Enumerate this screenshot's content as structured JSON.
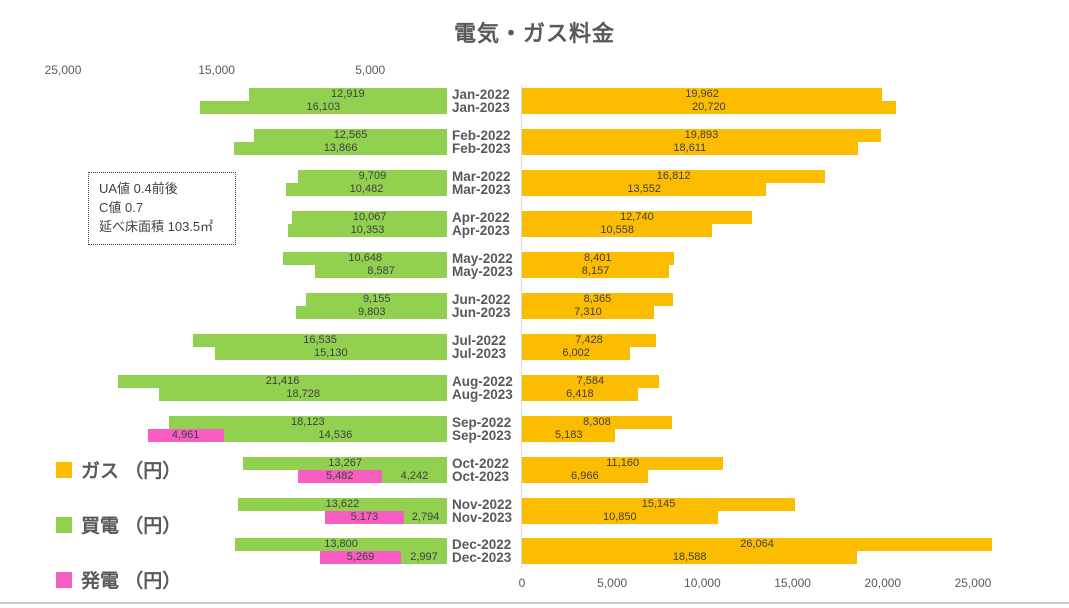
{
  "title": "電気・ガス料金",
  "annotation": {
    "lines": [
      "UA値 0.4前後",
      "C値 0.7",
      "延べ床面積 103.5㎡"
    ]
  },
  "legend": [
    {
      "id": "gas",
      "label": "ガス （円）",
      "color": "#FCBD00"
    },
    {
      "id": "buy",
      "label": "買電 （円）",
      "color": "#92D050"
    },
    {
      "id": "gen",
      "label": "発電 （円）",
      "color": "#F85EC2"
    }
  ],
  "colors": {
    "gas": "#FCBD00",
    "buy": "#92D050",
    "gen": "#F85EC2",
    "category_text": "#595959",
    "value_text": "#3f3f3f",
    "axis_line": "#d9d9d9"
  },
  "chart_data": {
    "type": "bar",
    "layout": "butterfly (left axis reversed: 買電/発電, right axis: ガス)",
    "title": "電気・ガス料金",
    "axis_max": 26500,
    "grid": false,
    "left_axis": {
      "direction": "values increase to the left",
      "ticks": [
        {
          "label": "25,000",
          "value": 25000
        },
        {
          "label": "15,000",
          "value": 15000
        },
        {
          "label": "5,000",
          "value": 5000
        }
      ]
    },
    "right_axis": {
      "ticks": [
        {
          "label": "0",
          "value": 0
        },
        {
          "label": "5,000",
          "value": 5000
        },
        {
          "label": "10,000",
          "value": 10000
        },
        {
          "label": "15,000",
          "value": 15000
        },
        {
          "label": "20,000",
          "value": 20000
        },
        {
          "label": "25,000",
          "value": 25000
        }
      ]
    },
    "series_names": {
      "gas": "ガス（円）",
      "buy": "買電（円）",
      "gen": "発電（円）"
    },
    "months": [
      {
        "rows": [
          {
            "label": "Jan-2022",
            "buy": 12919,
            "gen": null,
            "gas": 19962
          },
          {
            "label": "Jan-2023",
            "buy": 16103,
            "gen": null,
            "gas": 20720
          }
        ]
      },
      {
        "rows": [
          {
            "label": "Feb-2022",
            "buy": 12565,
            "gen": null,
            "gas": 19893
          },
          {
            "label": "Feb-2023",
            "buy": 13866,
            "gen": null,
            "gas": 18611
          }
        ]
      },
      {
        "rows": [
          {
            "label": "Mar-2022",
            "buy": 9709,
            "gen": null,
            "gas": 16812
          },
          {
            "label": "Mar-2023",
            "buy": 10482,
            "gen": null,
            "gas": 13552
          }
        ]
      },
      {
        "rows": [
          {
            "label": "Apr-2022",
            "buy": 10067,
            "gen": null,
            "gas": 12740
          },
          {
            "label": "Apr-2023",
            "buy": 10353,
            "gen": null,
            "gas": 10558
          }
        ]
      },
      {
        "rows": [
          {
            "label": "May-2022",
            "buy": 10648,
            "gen": null,
            "gas": 8401
          },
          {
            "label": "May-2023",
            "buy": 8587,
            "gen": null,
            "gas": 8157
          }
        ]
      },
      {
        "rows": [
          {
            "label": "Jun-2022",
            "buy": 9155,
            "gen": null,
            "gas": 8365
          },
          {
            "label": "Jun-2023",
            "buy": 9803,
            "gen": null,
            "gas": 7310
          }
        ]
      },
      {
        "rows": [
          {
            "label": "Jul-2022",
            "buy": 16535,
            "gen": null,
            "gas": 7428
          },
          {
            "label": "Jul-2023",
            "buy": 15130,
            "gen": null,
            "gas": 6002
          }
        ]
      },
      {
        "rows": [
          {
            "label": "Aug-2022",
            "buy": 21416,
            "gen": null,
            "gas": 7584
          },
          {
            "label": "Aug-2023",
            "buy": 18728,
            "gen": null,
            "gas": 6418
          }
        ]
      },
      {
        "rows": [
          {
            "label": "Sep-2022",
            "buy": 18123,
            "gen": null,
            "gas": 8308
          },
          {
            "label": "Sep-2023",
            "buy": 14536,
            "gen": 4961,
            "gas": 5183
          }
        ]
      },
      {
        "rows": [
          {
            "label": "Oct-2022",
            "buy": 13267,
            "gen": null,
            "gas": 11160
          },
          {
            "label": "Oct-2023",
            "buy": 4242,
            "gen": 5482,
            "gas": 6966
          }
        ]
      },
      {
        "rows": [
          {
            "label": "Nov-2022",
            "buy": 13622,
            "gen": null,
            "gas": 15145
          },
          {
            "label": "Nov-2023",
            "buy": 2794,
            "gen": 5173,
            "gas": 10850
          }
        ]
      },
      {
        "rows": [
          {
            "label": "Dec-2022",
            "buy": 13800,
            "gen": null,
            "gas": 26064
          },
          {
            "label": "Dec-2023",
            "buy": 2997,
            "gen": 5269,
            "gas": 18588
          }
        ]
      }
    ]
  }
}
